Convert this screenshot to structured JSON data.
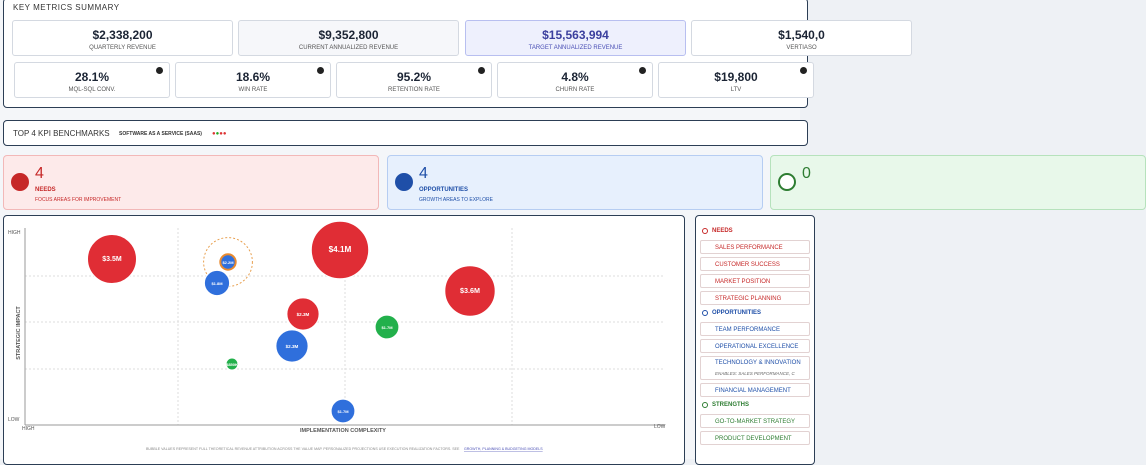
{
  "header": {
    "title": "KEY METRICS SUMMARY"
  },
  "metrics_top": [
    {
      "value": "$2,338,200",
      "label": "QUARTERLY REVENUE"
    },
    {
      "value": "$9,352,800",
      "label": "CURRENT ANNUALIZED REVENUE"
    },
    {
      "value": "$15,563,994",
      "label": "TARGET ANNUALIZED REVENUE"
    },
    {
      "value": "$1,540,0",
      "label": "VERTIASO"
    }
  ],
  "metrics_bottom": [
    {
      "value": "28.1%",
      "label": "MQL-SQL CONV."
    },
    {
      "value": "18.6%",
      "label": "WIN RATE"
    },
    {
      "value": "95.2%",
      "label": "RETENTION RATE"
    },
    {
      "value": "4.8%",
      "label": "CHURN RATE"
    },
    {
      "value": "$19,800",
      "label": "LTV"
    }
  ],
  "benchmarks": {
    "title": "TOP 4 KPI BENCHMARKS",
    "industry": "SOFTWARE AS A SERVICE (SAAS)"
  },
  "groups": [
    {
      "count": "4",
      "name": "NEEDS",
      "desc": "FOCUS AREAS FOR IMPROVEMENT"
    },
    {
      "count": "4",
      "name": "OPPORTUNITIES",
      "desc": "GROWTH AREAS TO EXPLORE"
    },
    {
      "count": "0"
    }
  ],
  "chart": {
    "y_label": "STRATEGIC IMPACT",
    "x_label": "IMPLEMENTATION COMPLEXITY",
    "y_high": "HIGH",
    "y_low": "LOW",
    "x_high": "HIGH",
    "x_low": "LOW",
    "bubbles": [
      {
        "label": "$3.5M",
        "value": 3.5,
        "group": "needs"
      },
      {
        "label": "$2.2M",
        "value": 2.2,
        "group": "target"
      },
      {
        "label": "$1.8M",
        "value": 1.8,
        "group": "opportunities"
      },
      {
        "label": "$4.1M",
        "value": 4.1,
        "group": "needs"
      },
      {
        "label": "$3.6M",
        "value": 3.6,
        "group": "needs"
      },
      {
        "label": "$2.3M",
        "value": 2.3,
        "group": "needs"
      },
      {
        "label": "$1.7M",
        "value": 1.7,
        "group": "strengths"
      },
      {
        "label": "$2.3M",
        "value": 2.3,
        "group": "opportunities"
      },
      {
        "label": "$850K",
        "value": 0.85,
        "group": "strengths"
      },
      {
        "label": "$1.7M",
        "value": 1.7,
        "group": "opportunities"
      }
    ],
    "note": "BUBBLE VALUES REPRESENT FULL THEORETICAL REVENUE ATTRIBUTION ACROSS THE VALUE MAP. PERSONALIZED PROJECTIONS USE EXECUTION REALIZATION FACTORS. SEE",
    "note_link": "GROWTH, PLANNING & BUDGETING MODELS"
  },
  "legend": [
    {
      "heading": "NEEDS",
      "items": [
        "SALES PERFORMANCE",
        "CUSTOMER SUCCESS",
        "MARKET POSITION",
        "STRATEGIC PLANNING"
      ]
    },
    {
      "heading": "OPPORTUNITIES",
      "items": [
        "TEAM PERFORMANCE",
        "OPERATIONAL EXCELLENCE",
        "TECHNOLOGY & INNOVATION",
        "FINANCIAL MANAGEMENT"
      ],
      "sub": "ENABLES: SALES PERFORMANCE, C"
    },
    {
      "heading": "STRENGTHS",
      "items": [
        "GO-TO-MARKET STRATEGY",
        "PRODUCT DEVELOPMENT"
      ]
    }
  ]
}
